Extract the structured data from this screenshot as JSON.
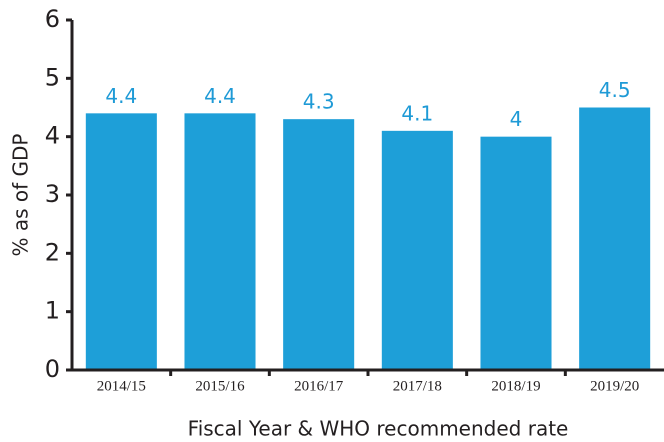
{
  "chart_data": {
    "type": "bar",
    "x_label": "Fiscal Year & WHO recommended rate",
    "y_label": "% as of GDP",
    "categories": [
      "2014/15",
      "2015/16",
      "2016/17",
      "2017/18",
      "2018/19",
      "2019/20"
    ],
    "values": [
      4.4,
      4.4,
      4.3,
      4.1,
      4,
      4.5
    ],
    "color": "#1e9fd8",
    "ylim": [
      0,
      6
    ],
    "yticks": [
      0,
      1,
      2,
      3,
      4,
      5,
      6
    ],
    "grid": false
  }
}
